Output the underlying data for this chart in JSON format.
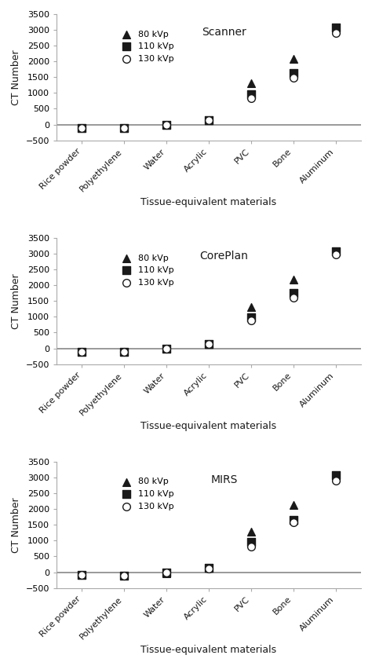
{
  "categories": [
    "Rice powder",
    "Polyethylene",
    "Water",
    "Acrylic",
    "PVC",
    "Bone",
    "Aluminum"
  ],
  "subplots": [
    {
      "title": "Scanner",
      "data": {
        "80kVp": [
          -100,
          -100,
          -20,
          130,
          1300,
          2080,
          3070
        ],
        "110kVp": [
          -100,
          -100,
          -10,
          140,
          950,
          1620,
          3080
        ],
        "130kVp": [
          -100,
          -100,
          -5,
          130,
          830,
          1490,
          2900
        ]
      }
    },
    {
      "title": "CorePlan",
      "data": {
        "80kVp": [
          -100,
          -100,
          -15,
          140,
          1300,
          2190,
          3080
        ],
        "110kVp": [
          -100,
          -100,
          -10,
          150,
          980,
          1760,
          3080
        ],
        "130kVp": [
          -100,
          -100,
          -5,
          130,
          880,
          1600,
          2980
        ]
      }
    },
    {
      "title": "MIRS",
      "data": {
        "80kVp": [
          -80,
          -100,
          -30,
          140,
          1290,
          2120,
          3080
        ],
        "110kVp": [
          -80,
          -100,
          -20,
          130,
          960,
          1660,
          3080
        ],
        "130kVp": [
          -80,
          -100,
          -10,
          120,
          820,
          1590,
          2900
        ]
      }
    }
  ],
  "ylim": [
    -500,
    3500
  ],
  "yticks": [
    -500,
    0,
    500,
    1000,
    1500,
    2000,
    2500,
    3000,
    3500
  ],
  "xlabel": "Tissue-equivalent materials",
  "ylabel": "CT Number",
  "legend_labels": [
    "80 kVp",
    "110 kVp",
    "130 kVp"
  ],
  "markers": [
    "^",
    "s",
    "o"
  ],
  "colors": [
    "#1a1a1a",
    "#1a1a1a",
    "#1a1a1a"
  ],
  "markerfacecolors": [
    "#1a1a1a",
    "#1a1a1a",
    "white"
  ],
  "markersize": 7,
  "hline_color": "#888888",
  "hline_lw": 1.2,
  "bg_color": "#ffffff",
  "text_color": "#1a1a1a",
  "tick_label_fontsize": 8,
  "axis_label_fontsize": 9,
  "title_fontsize": 10,
  "legend_fontsize": 8
}
